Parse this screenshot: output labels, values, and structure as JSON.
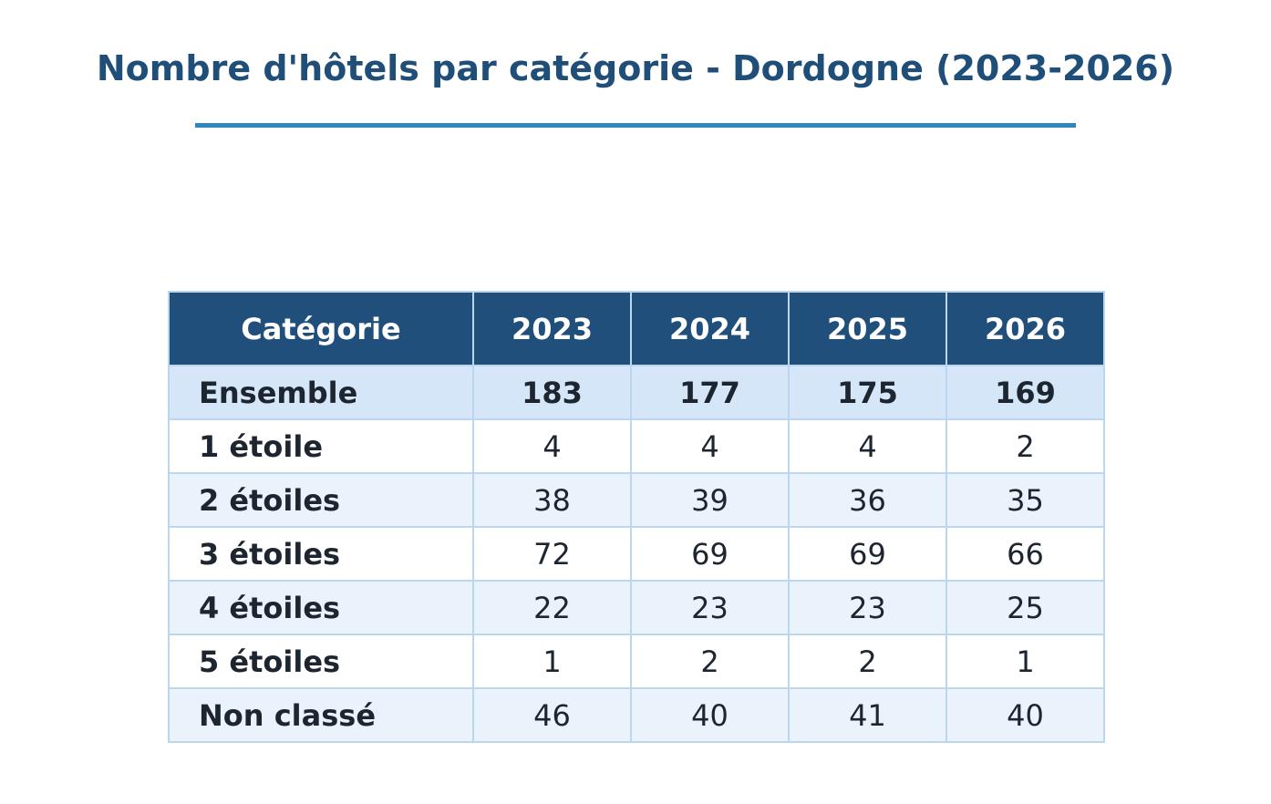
{
  "title": "Nombre d'hôtels par catégorie - Dordogne (2023-2026)",
  "colors": {
    "title": "#1f4e79",
    "rule": "#2e86c1",
    "header_bg": "#214f7b",
    "total_row_bg": "#d4e6f7",
    "alt_row_bg": "#eaf2fb",
    "border": "#bcd6ee"
  },
  "chart_data": {
    "type": "table",
    "title": "Nombre d'hôtels par catégorie - Dordogne (2023-2026)",
    "columns": [
      "Catégorie",
      "2023",
      "2024",
      "2025",
      "2026"
    ],
    "rows": [
      {
        "category": "Ensemble",
        "values": [
          183,
          177,
          175,
          169
        ],
        "total": true
      },
      {
        "category": "1 étoile",
        "values": [
          4,
          4,
          4,
          2
        ]
      },
      {
        "category": "2 étoiles",
        "values": [
          38,
          39,
          36,
          35
        ]
      },
      {
        "category": "3 étoiles",
        "values": [
          72,
          69,
          69,
          66
        ]
      },
      {
        "category": "4 étoiles",
        "values": [
          22,
          23,
          23,
          25
        ]
      },
      {
        "category": "5 étoiles",
        "values": [
          1,
          2,
          2,
          1
        ]
      },
      {
        "category": "Non classé",
        "values": [
          46,
          40,
          41,
          40
        ]
      }
    ]
  }
}
